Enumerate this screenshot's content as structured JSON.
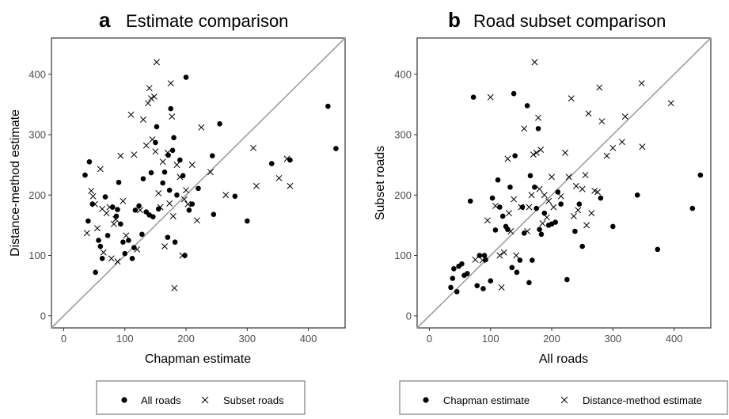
{
  "chart_data": [
    {
      "type": "scatter",
      "panel": "a",
      "title": "Estimate comparison",
      "xlabel": "Chapman estimate",
      "ylabel": "Distance-method estimate",
      "xlim": [
        -20,
        460
      ],
      "ylim": [
        -20,
        460
      ],
      "x_ticks": [
        0,
        100,
        200,
        300,
        400
      ],
      "y_ticks": [
        0,
        100,
        200,
        300,
        400
      ],
      "identity_line": true,
      "grid": false,
      "legend_position": "bottom",
      "series": [
        {
          "name": "All roads",
          "marker": "dot",
          "points": [
            [
              35,
              233
            ],
            [
              40,
              157
            ],
            [
              42,
              255
            ],
            [
              47,
              185
            ],
            [
              52,
              72
            ],
            [
              57,
              125
            ],
            [
              60,
              115
            ],
            [
              63,
              95
            ],
            [
              68,
              197
            ],
            [
              72,
              133
            ],
            [
              80,
              180
            ],
            [
              86,
              165
            ],
            [
              88,
              176
            ],
            [
              90,
              221
            ],
            [
              93,
              152
            ],
            [
              97,
              122
            ],
            [
              100,
              103
            ],
            [
              106,
              125
            ],
            [
              112,
              95
            ],
            [
              115,
              113
            ],
            [
              117,
              175
            ],
            [
              123,
              182
            ],
            [
              128,
              135
            ],
            [
              130,
              227
            ],
            [
              135,
              172
            ],
            [
              140,
              167
            ],
            [
              143,
              237
            ],
            [
              146,
              164
            ],
            [
              150,
              287
            ],
            [
              152,
              313
            ],
            [
              155,
              177
            ],
            [
              162,
              220
            ],
            [
              165,
              238
            ],
            [
              170,
              130
            ],
            [
              171,
              266
            ],
            [
              173,
              208
            ],
            [
              175,
              343
            ],
            [
              178,
              274
            ],
            [
              180,
              295
            ],
            [
              182,
              122
            ],
            [
              185,
              200
            ],
            [
              190,
              258
            ],
            [
              195,
              232
            ],
            [
              198,
              100
            ],
            [
              200,
              395
            ],
            [
              205,
              175
            ],
            [
              210,
              185
            ],
            [
              220,
              211
            ],
            [
              243,
              265
            ],
            [
              245,
              168
            ],
            [
              255,
              318
            ],
            [
              280,
              198
            ],
            [
              300,
              157
            ],
            [
              340,
              252
            ],
            [
              370,
              258
            ],
            [
              432,
              347
            ],
            [
              445,
              277
            ]
          ]
        },
        {
          "name": "Subset roads",
          "marker": "x",
          "points": [
            [
              38,
              137
            ],
            [
              45,
              207
            ],
            [
              48,
              198
            ],
            [
              51,
              185
            ],
            [
              55,
              145
            ],
            [
              60,
              243
            ],
            [
              63,
              177
            ],
            [
              65,
              105
            ],
            [
              70,
              170
            ],
            [
              75,
              180
            ],
            [
              78,
              95
            ],
            [
              82,
              152
            ],
            [
              85,
              160
            ],
            [
              88,
              90
            ],
            [
              93,
              265
            ],
            [
              97,
              190
            ],
            [
              102,
              133
            ],
            [
              110,
              333
            ],
            [
              115,
              267
            ],
            [
              120,
              110
            ],
            [
              125,
              175
            ],
            [
              130,
              325
            ],
            [
              135,
              282
            ],
            [
              138,
              352
            ],
            [
              140,
              377
            ],
            [
              143,
              360
            ],
            [
              145,
              292
            ],
            [
              148,
              363
            ],
            [
              150,
              272
            ],
            [
              152,
              420
            ],
            [
              155,
              203
            ],
            [
              158,
              180
            ],
            [
              162,
              255
            ],
            [
              165,
              115
            ],
            [
              170,
              270
            ],
            [
              173,
              186
            ],
            [
              175,
              385
            ],
            [
              177,
              330
            ],
            [
              179,
              165
            ],
            [
              181,
              46
            ],
            [
              185,
              250
            ],
            [
              190,
              230
            ],
            [
              194,
              100
            ],
            [
              197,
              193
            ],
            [
              200,
              208
            ],
            [
              203,
              185
            ],
            [
              210,
              250
            ],
            [
              218,
              158
            ],
            [
              225,
              312
            ],
            [
              240,
              238
            ],
            [
              265,
              200
            ],
            [
              310,
              278
            ],
            [
              315,
              215
            ],
            [
              352,
              228
            ],
            [
              365,
              260
            ],
            [
              370,
              215
            ]
          ]
        }
      ]
    },
    {
      "type": "scatter",
      "panel": "b",
      "title": "Road subset comparison",
      "xlabel": "All roads",
      "ylabel": "Subset roads",
      "xlim": [
        -20,
        460
      ],
      "ylim": [
        -20,
        460
      ],
      "x_ticks": [
        0,
        100,
        200,
        300,
        400
      ],
      "y_ticks": [
        0,
        100,
        200,
        300,
        400
      ],
      "identity_line": true,
      "grid": false,
      "legend_position": "bottom",
      "series": [
        {
          "name": "Chapman estimate",
          "marker": "dot",
          "points": [
            [
              35,
              47
            ],
            [
              38,
              62
            ],
            [
              40,
              78
            ],
            [
              45,
              40
            ],
            [
              48,
              82
            ],
            [
              53,
              86
            ],
            [
              57,
              67
            ],
            [
              62,
              70
            ],
            [
              67,
              190
            ],
            [
              72,
              362
            ],
            [
              78,
              50
            ],
            [
              82,
              100
            ],
            [
              88,
              45
            ],
            [
              90,
              100
            ],
            [
              92,
              93
            ],
            [
              100,
              58
            ],
            [
              103,
              195
            ],
            [
              108,
              142
            ],
            [
              112,
              225
            ],
            [
              115,
              180
            ],
            [
              120,
              165
            ],
            [
              125,
              148
            ],
            [
              128,
              143
            ],
            [
              132,
              213
            ],
            [
              135,
              80
            ],
            [
              138,
              368
            ],
            [
              140,
              265
            ],
            [
              143,
              72
            ],
            [
              148,
              92
            ],
            [
              152,
              180
            ],
            [
              155,
              137
            ],
            [
              160,
              348
            ],
            [
              163,
              55
            ],
            [
              165,
              232
            ],
            [
              168,
              92
            ],
            [
              172,
              213
            ],
            [
              175,
              178
            ],
            [
              178,
              310
            ],
            [
              180,
              143
            ],
            [
              183,
              135
            ],
            [
              188,
              170
            ],
            [
              195,
              150
            ],
            [
              200,
              152
            ],
            [
              206,
              155
            ],
            [
              210,
              205
            ],
            [
              215,
              185
            ],
            [
              225,
              60
            ],
            [
              238,
              140
            ],
            [
              245,
              185
            ],
            [
              250,
              115
            ],
            [
              280,
              195
            ],
            [
              300,
              148
            ],
            [
              340,
              200
            ],
            [
              373,
              110
            ],
            [
              430,
              178
            ],
            [
              443,
              233
            ]
          ]
        },
        {
          "name": "Distance-method estimate",
          "marker": "x",
          "points": [
            [
              75,
              93
            ],
            [
              87,
              92
            ],
            [
              95,
              158
            ],
            [
              100,
              362
            ],
            [
              108,
              182
            ],
            [
              115,
              100
            ],
            [
              118,
              47
            ],
            [
              122,
              105
            ],
            [
              128,
              260
            ],
            [
              130,
              170
            ],
            [
              133,
              140
            ],
            [
              138,
              193
            ],
            [
              142,
              100
            ],
            [
              150,
              180
            ],
            [
              155,
              310
            ],
            [
              160,
              140
            ],
            [
              163,
              180
            ],
            [
              167,
              200
            ],
            [
              170,
              267
            ],
            [
              172,
              420
            ],
            [
              175,
              270
            ],
            [
              178,
              328
            ],
            [
              180,
              210
            ],
            [
              182,
              275
            ],
            [
              185,
              153
            ],
            [
              188,
              200
            ],
            [
              192,
              163
            ],
            [
              195,
              190
            ],
            [
              200,
              230
            ],
            [
              203,
              180
            ],
            [
              215,
              198
            ],
            [
              222,
              270
            ],
            [
              228,
              230
            ],
            [
              232,
              360
            ],
            [
              236,
              165
            ],
            [
              240,
              215
            ],
            [
              243,
              175
            ],
            [
              250,
              210
            ],
            [
              255,
              233
            ],
            [
              257,
              150
            ],
            [
              260,
              335
            ],
            [
              265,
              170
            ],
            [
              270,
              207
            ],
            [
              275,
              205
            ],
            [
              278,
              378
            ],
            [
              282,
              322
            ],
            [
              290,
              265
            ],
            [
              300,
              278
            ],
            [
              315,
              288
            ],
            [
              320,
              330
            ],
            [
              347,
              385
            ],
            [
              348,
              280
            ],
            [
              395,
              352
            ]
          ]
        }
      ]
    }
  ]
}
